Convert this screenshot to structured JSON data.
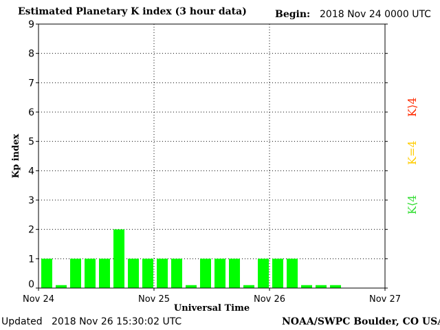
{
  "title": "Estimated Planetary K index (3 hour data)",
  "begin_label": "Begin:",
  "begin_value": "2018 Nov 24 0000 UTC",
  "updated_label": "Updated",
  "updated_value": "2018 Nov 26 15:30:02 UTC",
  "credit": "NOAA/SWPC Boulder, CO USA",
  "legend": {
    "low": {
      "text": "K⟨4",
      "color": "#33dd33"
    },
    "mid": {
      "text": "K=4",
      "color": "#ffcc00"
    },
    "high": {
      "text": "K⟩4",
      "color": "#ff2a00"
    }
  },
  "chart_data": {
    "type": "bar",
    "title": "Estimated Planetary K index (3 hour data)",
    "xlabel": "Universal Time",
    "ylabel": "Kp index",
    "ylim": [
      0,
      9
    ],
    "yticks": [
      0,
      1,
      2,
      3,
      4,
      5,
      6,
      7,
      8,
      9
    ],
    "xtick_labels": [
      "Nov 24",
      "Nov 25",
      "Nov 26",
      "Nov 27"
    ],
    "interval_hours": 3,
    "values": [
      1,
      0.1,
      1,
      1,
      1,
      2,
      1,
      1,
      1,
      1,
      0.1,
      1,
      1,
      1,
      0.1,
      1,
      1,
      1,
      0.1,
      0.1,
      0.1
    ],
    "bar_color": "#00ff00",
    "grid": true
  }
}
